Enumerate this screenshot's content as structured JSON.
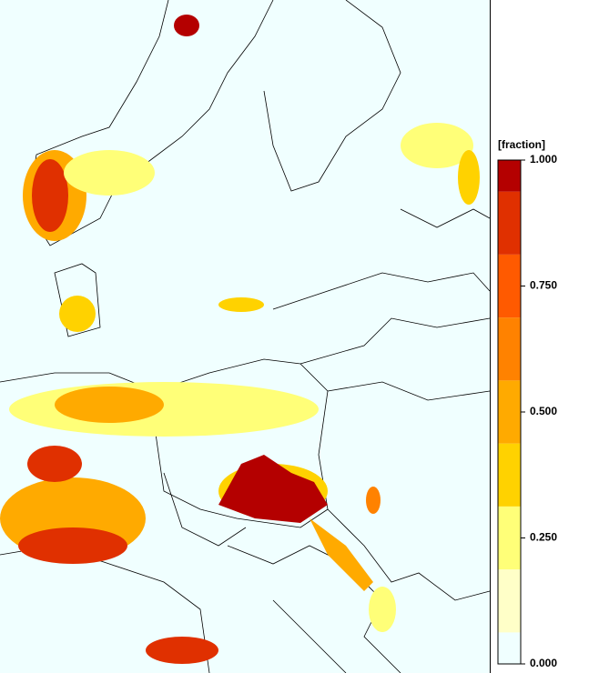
{
  "legend": {
    "title": "[fraction]",
    "lim": [
      0,
      1
    ],
    "ticks": [
      {
        "value": 0,
        "label": "0.000"
      },
      {
        "value": 0.25,
        "label": "0.250"
      },
      {
        "value": 0.5,
        "label": "0.500"
      },
      {
        "value": 0.75,
        "label": "0.750"
      },
      {
        "value": 1,
        "label": "1.000"
      }
    ],
    "bounds": [
      0,
      0.0625,
      0.1875,
      0.3125,
      0.4375,
      0.5625,
      0.6875,
      0.8125,
      0.9375,
      1
    ],
    "colors": [
      "#f0ffff",
      "#ffffc8",
      "#ffff78",
      "#ffd200",
      "#ffaa00",
      "#ff8200",
      "#ff5a00",
      "#e03000",
      "#b40000"
    ]
  }
}
